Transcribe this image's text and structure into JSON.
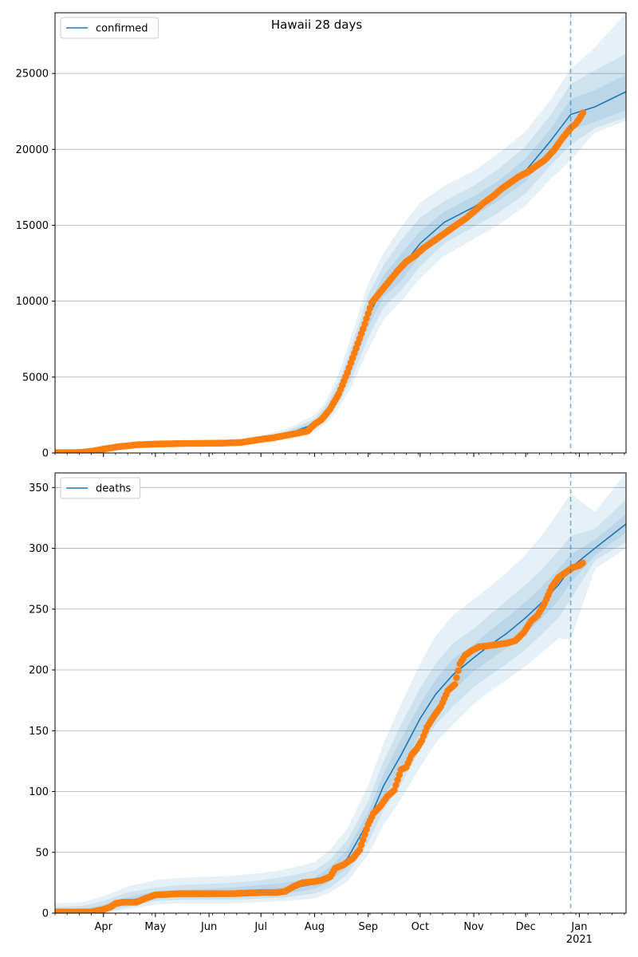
{
  "title": "Hawaii 28 days",
  "colors": {
    "line": "#1f77b4",
    "points": "#ff7f0e",
    "band": "#c6dbef",
    "grid": "#b0b0b0"
  },
  "chart_data": [
    {
      "type": "line",
      "legend": "confirmed",
      "legend_position": "top-left",
      "grid": "horizontal",
      "x_tick_labels": [
        {
          "date": "2020-04-01",
          "label": "Apr"
        },
        {
          "date": "2020-05-01",
          "label": "May"
        },
        {
          "date": "2020-06-01",
          "label": "Jun"
        },
        {
          "date": "2020-07-01",
          "label": "Jul"
        },
        {
          "date": "2020-08-01",
          "label": "Aug"
        },
        {
          "date": "2020-09-01",
          "label": "Sep"
        },
        {
          "date": "2020-10-01",
          "label": "Oct"
        },
        {
          "date": "2020-11-01",
          "label": "Nov"
        },
        {
          "date": "2020-12-01",
          "label": "Dec"
        },
        {
          "date": "2021-01-01",
          "label": "Jan"
        }
      ],
      "year_label": "2021",
      "xlim": [
        "2020-03-04",
        "2021-01-28"
      ],
      "ylim": [
        0,
        29000
      ],
      "yticks": [
        0,
        5000,
        10000,
        15000,
        20000,
        25000
      ],
      "forecast_start": "2020-12-27",
      "series": [
        {
          "name": "confirmed",
          "x": [
            "2020-03-04",
            "2020-03-20",
            "2020-04-01",
            "2020-04-15",
            "2020-05-01",
            "2020-05-15",
            "2020-06-01",
            "2020-06-15",
            "2020-07-01",
            "2020-07-15",
            "2020-08-01",
            "2020-08-08",
            "2020-08-15",
            "2020-08-22",
            "2020-09-01",
            "2020-09-10",
            "2020-09-20",
            "2020-10-01",
            "2020-10-15",
            "2020-11-01",
            "2020-11-15",
            "2020-12-01",
            "2020-12-15",
            "2020-12-27",
            "2021-01-10",
            "2021-01-28"
          ],
          "y": [
            20,
            50,
            280,
            550,
            600,
            620,
            640,
            660,
            900,
            1200,
            1900,
            2700,
            4000,
            5900,
            9000,
            11000,
            12200,
            13800,
            15200,
            16200,
            17200,
            18600,
            20500,
            22300,
            22800,
            23800
          ]
        }
      ],
      "band_upper": [
        [
          60,
          120,
          420,
          720,
          760,
          780,
          800,
          840,
          1150,
          1550,
          2500,
          3500,
          5200,
          7600,
          11200,
          13200,
          14900,
          16500,
          17600,
          18600,
          19700,
          21200,
          23200,
          25300,
          26700,
          29000
        ],
        [
          45,
          95,
          360,
          650,
          700,
          720,
          740,
          770,
          1050,
          1400,
          2250,
          3200,
          4700,
          6900,
          10400,
          12400,
          14000,
          15500,
          16600,
          17600,
          18700,
          20200,
          22200,
          24300,
          25200,
          26300
        ],
        [
          32,
          72,
          320,
          600,
          650,
          670,
          690,
          715,
          980,
          1300,
          2080,
          2950,
          4350,
          6400,
          9700,
          11700,
          13100,
          14600,
          15900,
          16900,
          17900,
          19400,
          21300,
          23300,
          23900,
          24900
        ]
      ],
      "band_lower": [
        [
          10,
          28,
          230,
          500,
          550,
          570,
          590,
          605,
          820,
          1100,
          1700,
          2450,
          3600,
          5300,
          8300,
          10300,
          11300,
          13000,
          14500,
          15600,
          16600,
          17900,
          19700,
          21300,
          21800,
          22600
        ],
        [
          5,
          15,
          200,
          460,
          510,
          530,
          550,
          560,
          760,
          1010,
          1550,
          2200,
          3300,
          4800,
          7600,
          9600,
          10700,
          12300,
          13800,
          14900,
          15800,
          17100,
          18900,
          20300,
          21400,
          22100
        ],
        [
          0,
          5,
          160,
          400,
          460,
          480,
          500,
          510,
          690,
          920,
          1380,
          1950,
          2950,
          4300,
          6800,
          8800,
          10000,
          11500,
          13000,
          14100,
          15000,
          16300,
          18000,
          19300,
          21100,
          21900
        ]
      ],
      "points": {
        "x": [
          "2020-03-04",
          "2020-03-08",
          "2020-03-12",
          "2020-03-16",
          "2020-03-20",
          "2020-03-24",
          "2020-03-28",
          "2020-04-01",
          "2020-04-05",
          "2020-04-10",
          "2020-04-15",
          "2020-04-20",
          "2020-04-25",
          "2020-05-01",
          "2020-05-10",
          "2020-05-20",
          "2020-06-01",
          "2020-06-10",
          "2020-06-20",
          "2020-07-01",
          "2020-07-08",
          "2020-07-15",
          "2020-07-22",
          "2020-07-28",
          "2020-08-01",
          "2020-08-05",
          "2020-08-10",
          "2020-08-15",
          "2020-08-20",
          "2020-08-25",
          "2020-08-30",
          "2020-09-03",
          "2020-09-08",
          "2020-09-13",
          "2020-09-18",
          "2020-09-23",
          "2020-09-28",
          "2020-10-03",
          "2020-10-08",
          "2020-10-13",
          "2020-10-18",
          "2020-10-23",
          "2020-10-28",
          "2020-11-02",
          "2020-11-07",
          "2020-11-12",
          "2020-11-17",
          "2020-11-22",
          "2020-11-27",
          "2020-12-02",
          "2020-12-07",
          "2020-12-12",
          "2020-12-17",
          "2020-12-22",
          "2020-12-27",
          "2020-12-30",
          "2021-01-01",
          "2021-01-03"
        ],
        "y": [
          20,
          20,
          25,
          30,
          50,
          100,
          170,
          260,
          330,
          420,
          470,
          540,
          560,
          590,
          610,
          630,
          640,
          650,
          700,
          900,
          1000,
          1150,
          1300,
          1450,
          1900,
          2200,
          2900,
          3900,
          5300,
          6900,
          8500,
          9900,
          10600,
          11300,
          12000,
          12600,
          13000,
          13500,
          13900,
          14300,
          14700,
          15100,
          15500,
          16000,
          16500,
          16900,
          17400,
          17800,
          18200,
          18500,
          18900,
          19300,
          19900,
          20700,
          21400,
          21700,
          22000,
          22400
        ]
      }
    },
    {
      "type": "line",
      "legend": "deaths",
      "legend_position": "top-left",
      "grid": "horizontal",
      "x_tick_labels": [
        {
          "date": "2020-04-01",
          "label": "Apr"
        },
        {
          "date": "2020-05-01",
          "label": "May"
        },
        {
          "date": "2020-06-01",
          "label": "Jun"
        },
        {
          "date": "2020-07-01",
          "label": "Jul"
        },
        {
          "date": "2020-08-01",
          "label": "Aug"
        },
        {
          "date": "2020-09-01",
          "label": "Sep"
        },
        {
          "date": "2020-10-01",
          "label": "Oct"
        },
        {
          "date": "2020-11-01",
          "label": "Nov"
        },
        {
          "date": "2020-12-01",
          "label": "Dec"
        },
        {
          "date": "2021-01-01",
          "label": "Jan"
        }
      ],
      "year_label": "2021",
      "xlim": [
        "2020-03-04",
        "2021-01-28"
      ],
      "ylim": [
        0,
        362
      ],
      "yticks": [
        0,
        50,
        100,
        150,
        200,
        250,
        300,
        350
      ],
      "forecast_start": "2020-12-27",
      "series": [
        {
          "name": "deaths",
          "x": [
            "2020-03-04",
            "2020-03-20",
            "2020-04-01",
            "2020-04-15",
            "2020-05-01",
            "2020-05-15",
            "2020-06-01",
            "2020-06-15",
            "2020-07-01",
            "2020-07-15",
            "2020-08-01",
            "2020-08-10",
            "2020-08-20",
            "2020-09-01",
            "2020-09-10",
            "2020-09-20",
            "2020-10-01",
            "2020-10-10",
            "2020-10-20",
            "2020-11-01",
            "2020-11-10",
            "2020-11-20",
            "2020-12-01",
            "2020-12-10",
            "2020-12-20",
            "2020-12-27",
            "2021-01-10",
            "2021-01-28"
          ],
          "y": [
            0,
            0,
            4,
            10,
            15,
            16,
            16,
            17,
            18,
            20,
            24,
            32,
            45,
            75,
            105,
            130,
            160,
            180,
            196,
            210,
            220,
            230,
            243,
            255,
            270,
            284,
            300,
            320
          ]
        }
      ],
      "band_upper": [
        [
          8,
          9,
          14,
          22,
          27,
          29,
          30,
          31,
          33,
          36,
          42,
          52,
          70,
          105,
          140,
          172,
          205,
          228,
          245,
          258,
          268,
          280,
          295,
          310,
          330,
          345,
          330,
          362
        ],
        [
          5,
          6,
          10,
          17,
          21,
          23,
          24,
          25,
          27,
          30,
          35,
          44,
          60,
          92,
          125,
          155,
          185,
          205,
          222,
          234,
          245,
          257,
          270,
          282,
          298,
          310,
          316,
          340
        ],
        [
          2,
          3,
          7,
          13,
          18,
          19,
          20,
          21,
          23,
          25,
          29,
          38,
          52,
          83,
          115,
          143,
          172,
          192,
          209,
          221,
          232,
          243,
          256,
          268,
          283,
          295,
          307,
          328
        ]
      ],
      "band_lower": [
        [
          0,
          0,
          2,
          7,
          12,
          13,
          13,
          14,
          14,
          16,
          20,
          26,
          38,
          67,
          96,
          118,
          148,
          168,
          183,
          199,
          208,
          218,
          230,
          242,
          257,
          272,
          294,
          313
        ],
        [
          0,
          0,
          1,
          5,
          10,
          11,
          11,
          11,
          12,
          13,
          16,
          21,
          32,
          58,
          85,
          106,
          135,
          155,
          170,
          186,
          195,
          205,
          217,
          229,
          243,
          258,
          290,
          305
        ],
        [
          0,
          0,
          0,
          3,
          7,
          8,
          8,
          8,
          9,
          10,
          12,
          17,
          26,
          48,
          73,
          94,
          120,
          140,
          155,
          172,
          182,
          192,
          203,
          214,
          226,
          225,
          283,
          300
        ]
      ],
      "points": {
        "x": [
          "2020-03-04",
          "2020-03-15",
          "2020-03-25",
          "2020-03-28",
          "2020-04-01",
          "2020-04-05",
          "2020-04-08",
          "2020-04-12",
          "2020-04-20",
          "2020-04-25",
          "2020-05-01",
          "2020-05-15",
          "2020-06-01",
          "2020-06-15",
          "2020-07-01",
          "2020-07-10",
          "2020-07-15",
          "2020-07-20",
          "2020-07-25",
          "2020-08-01",
          "2020-08-05",
          "2020-08-10",
          "2020-08-13",
          "2020-08-18",
          "2020-08-23",
          "2020-08-27",
          "2020-09-01",
          "2020-09-04",
          "2020-09-08",
          "2020-09-12",
          "2020-09-16",
          "2020-09-20",
          "2020-09-23",
          "2020-09-26",
          "2020-09-29",
          "2020-10-02",
          "2020-10-05",
          "2020-10-09",
          "2020-10-13",
          "2020-10-17",
          "2020-10-21",
          "2020-10-24",
          "2020-10-27",
          "2020-10-31",
          "2020-11-04",
          "2020-11-10",
          "2020-11-15",
          "2020-11-20",
          "2020-11-25",
          "2020-11-30",
          "2020-12-04",
          "2020-12-08",
          "2020-12-12",
          "2020-12-16",
          "2020-12-20",
          "2020-12-24",
          "2020-12-28",
          "2021-01-01",
          "2021-01-03"
        ],
        "y": [
          1,
          1,
          1,
          2,
          3,
          5,
          8,
          9,
          9,
          12,
          15,
          16,
          16,
          16,
          17,
          17,
          18,
          22,
          25,
          26,
          27,
          30,
          37,
          40,
          45,
          52,
          73,
          82,
          88,
          96,
          101,
          118,
          120,
          130,
          135,
          142,
          153,
          162,
          170,
          183,
          188,
          205,
          212,
          216,
          219,
          220,
          221,
          222,
          224,
          231,
          240,
          245,
          255,
          268,
          276,
          280,
          284,
          286,
          288
        ]
      }
    }
  ]
}
